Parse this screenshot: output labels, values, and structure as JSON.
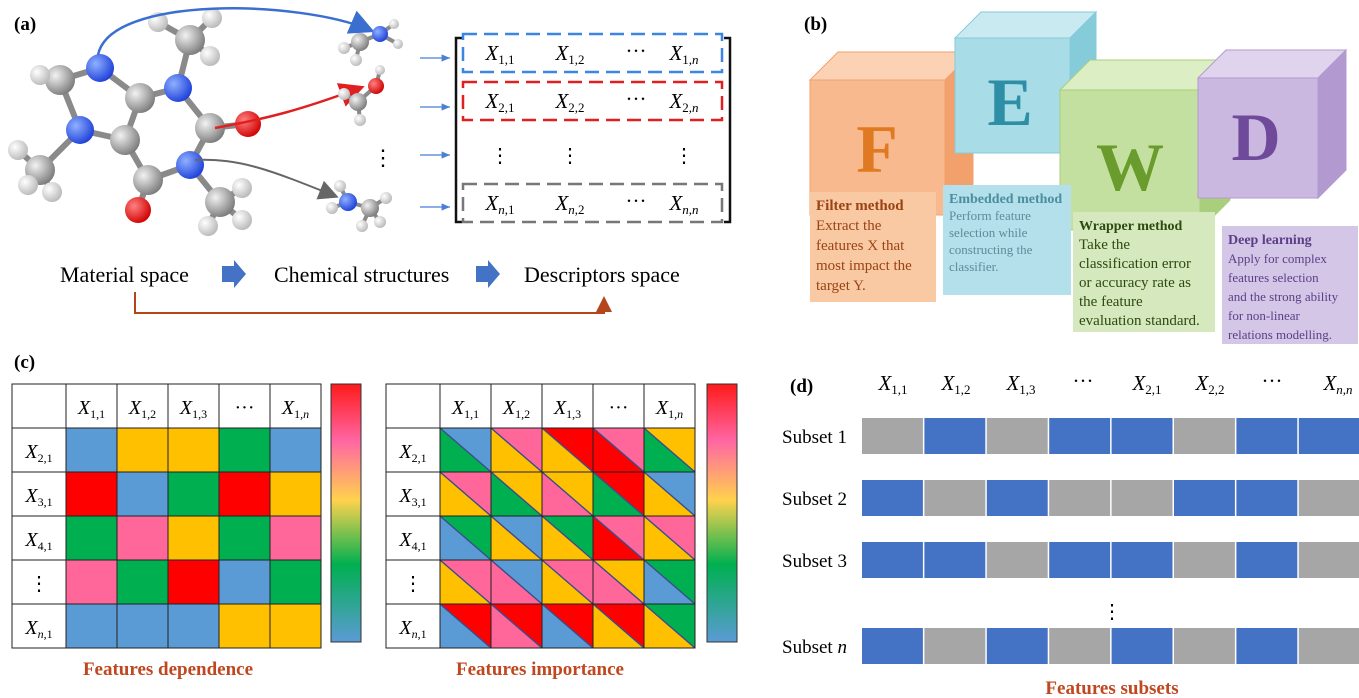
{
  "panel_a": {
    "label": "(a)",
    "flow": [
      "Material space",
      "Chemical structures",
      "Descriptors space"
    ],
    "rows": [
      {
        "color": "#3a86e0",
        "cells": [
          [
            "X",
            "1,1"
          ],
          [
            "X",
            "1,2"
          ],
          [
            "···",
            ""
          ],
          [
            "X",
            "1,n"
          ]
        ]
      },
      {
        "color": "#e02020",
        "cells": [
          [
            "X",
            "2,1"
          ],
          [
            "X",
            "2,2"
          ],
          [
            "···",
            ""
          ],
          [
            "X",
            "2,n"
          ]
        ]
      },
      {
        "color": "#777777",
        "cells": [
          [
            "X",
            "n,1"
          ],
          [
            "X",
            "n,2"
          ],
          [
            "···",
            ""
          ],
          [
            "X",
            "n,n"
          ]
        ]
      }
    ],
    "vdots": "⋮"
  },
  "panel_b": {
    "label": "(b)",
    "cubes": [
      {
        "letter": "F",
        "face": "#f7b98d",
        "side": "#f2a16d",
        "top": "#fbd3b4",
        "text": "#e07a22"
      },
      {
        "letter": "E",
        "face": "#a8dde8",
        "side": "#86cbd9",
        "top": "#c9eaf1",
        "text": "#2e8ea5"
      },
      {
        "letter": "W",
        "face": "#c4e0a0",
        "side": "#a9cf7c",
        "top": "#dcefc4",
        "text": "#6a9b2d"
      },
      {
        "letter": "D",
        "face": "#cbb8e0",
        "side": "#b29ad0",
        "top": "#e0d3ee",
        "text": "#6f4a9a"
      }
    ],
    "boxes": [
      {
        "title": "Filter method",
        "lines": [
          "Extract the",
          "features X that",
          "most impact the",
          "target Y."
        ],
        "bg": "#f9c9a4",
        "title_color": "#9a4313",
        "text_color": "#9a4313"
      },
      {
        "title": "Embedded method",
        "lines": [
          "Perform feature",
          "selection while",
          "constructing the",
          "classifier."
        ],
        "bg": "#b3e0ea",
        "title_color": "#4a8ea0",
        "text_color": "#5d8c99"
      },
      {
        "title": "Wrapper method",
        "lines": [
          "Take the",
          "classification error",
          "or accuracy rate as",
          "the feature",
          "evaluation standard."
        ],
        "bg": "#d6e8bd",
        "title_color": "#2d4a10",
        "text_color": "#2d4a10"
      },
      {
        "title": "Deep learning",
        "lines": [
          "Apply for complex",
          "features selection",
          "and the strong ability",
          "for non-linear",
          "relations modelling."
        ],
        "bg": "#d3c6e6",
        "title_color": "#5c3f87",
        "text_color": "#5c3f87"
      }
    ]
  },
  "panel_c": {
    "label": "(c)",
    "col_headers": [
      [
        "X",
        "1,1"
      ],
      [
        "X",
        "1,2"
      ],
      [
        "X",
        "1,3"
      ],
      [
        "···",
        ""
      ],
      [
        "X",
        "1,n"
      ]
    ],
    "row_headers": [
      [
        "X",
        "2,1"
      ],
      [
        "X",
        "3,1"
      ],
      [
        "X",
        "4,1"
      ],
      [
        "⋮",
        ""
      ],
      [
        "X",
        "n,1"
      ]
    ],
    "palette": {
      "B": "#5b9bd5",
      "Y": "#ffc000",
      "G": "#00b050",
      "R": "#ff0000",
      "P": "#ff6699"
    },
    "dependence": [
      [
        "B",
        "Y",
        "Y",
        "G",
        "B"
      ],
      [
        "R",
        "B",
        "G",
        "R",
        "Y"
      ],
      [
        "G",
        "P",
        "Y",
        "G",
        "P"
      ],
      [
        "P",
        "G",
        "R",
        "B",
        "G"
      ],
      [
        "B",
        "B",
        "B",
        "Y",
        "Y"
      ]
    ],
    "importance": [
      [
        [
          "G",
          "B"
        ],
        [
          "Y",
          "P"
        ],
        [
          "Y",
          "R"
        ],
        [
          "R",
          "P"
        ],
        [
          "G",
          "Y"
        ]
      ],
      [
        [
          "Y",
          "P"
        ],
        [
          "G",
          "Y"
        ],
        [
          "P",
          "Y"
        ],
        [
          "G",
          "R"
        ],
        [
          "Y",
          "B"
        ]
      ],
      [
        [
          "B",
          "G"
        ],
        [
          "Y",
          "B"
        ],
        [
          "Y",
          "G"
        ],
        [
          "R",
          "P"
        ],
        [
          "Y",
          "P"
        ]
      ],
      [
        [
          "Y",
          "P"
        ],
        [
          "P",
          "B"
        ],
        [
          "Y",
          "P"
        ],
        [
          "P",
          "Y"
        ],
        [
          "B",
          "G"
        ]
      ],
      [
        [
          "B",
          "R"
        ],
        [
          "P",
          "R"
        ],
        [
          "B",
          "R"
        ],
        [
          "Y",
          "R"
        ],
        [
          "Y",
          "G"
        ]
      ]
    ],
    "title_left": "Features dependence",
    "title_right": "Features importance"
  },
  "panel_d": {
    "label": "(d)",
    "headers": [
      [
        "X",
        "1,1"
      ],
      [
        "X",
        "1,2"
      ],
      [
        "X",
        "1,3"
      ],
      [
        "···",
        ""
      ],
      [
        "X",
        "2,1"
      ],
      [
        "X",
        "2,2"
      ],
      [
        "···",
        ""
      ],
      [
        "X",
        "n,n"
      ]
    ],
    "subsets": [
      {
        "label": "Subset 1",
        "pattern": [
          0,
          1,
          0,
          1,
          1,
          0,
          1,
          1
        ]
      },
      {
        "label": "Subset 2",
        "pattern": [
          1,
          0,
          1,
          0,
          0,
          1,
          1,
          0
        ]
      },
      {
        "label": "Subset 3",
        "pattern": [
          1,
          1,
          0,
          1,
          1,
          0,
          1,
          0
        ]
      },
      {
        "label": "Subset n",
        "pattern": [
          1,
          0,
          1,
          0,
          1,
          0,
          1,
          0
        ]
      }
    ],
    "vdots": "⋮",
    "colors": {
      "on": "#4472c4",
      "off": "#a6a6a6"
    },
    "title": "Features subsets"
  }
}
